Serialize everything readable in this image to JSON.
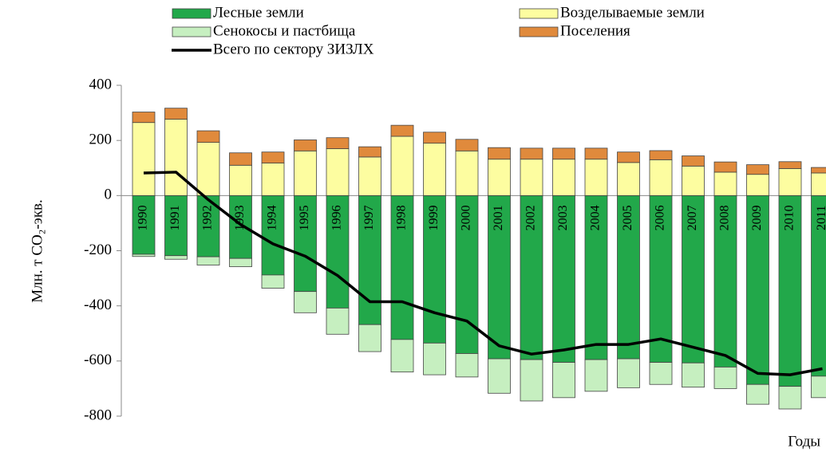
{
  "chart_data": {
    "type": "bar",
    "ylabel": "Млн. т CO₂-экв.",
    "xlabel": "Годы",
    "categories": [
      "1990",
      "1991",
      "1992",
      "1993",
      "1994",
      "1995",
      "1996",
      "1997",
      "1998",
      "1999",
      "2000",
      "2001",
      "2002",
      "2003",
      "2004",
      "2005",
      "2006",
      "2007",
      "2008",
      "2009",
      "2010",
      "2011"
    ],
    "series": [
      {
        "name": "Лесные земли",
        "color": "#22a84a",
        "values": [
          -213,
          -218,
          -222,
          -228,
          -288,
          -348,
          -408,
          -468,
          -522,
          -535,
          -573,
          -592,
          -595,
          -605,
          -595,
          -592,
          -605,
          -607,
          -622,
          -685,
          -692,
          -655
        ]
      },
      {
        "name": "Возделываемые земли",
        "color": "#fdfda0",
        "values": [
          265,
          277,
          193,
          110,
          118,
          162,
          170,
          140,
          215,
          190,
          162,
          132,
          132,
          132,
          132,
          120,
          130,
          107,
          85,
          77,
          98,
          82
        ]
      },
      {
        "name": "Сенокосы и пастбища",
        "color": "#c6efc0",
        "values": [
          -8,
          -13,
          -30,
          -30,
          -48,
          -77,
          -95,
          -98,
          -118,
          -115,
          -85,
          -125,
          -150,
          -128,
          -115,
          -105,
          -80,
          -88,
          -78,
          -72,
          -82,
          -78
        ]
      },
      {
        "name": "Поселения",
        "color": "#e08a3c",
        "values": [
          38,
          40,
          42,
          45,
          40,
          40,
          40,
          37,
          40,
          40,
          42,
          42,
          40,
          40,
          40,
          38,
          33,
          37,
          37,
          35,
          25,
          20
        ]
      },
      {
        "name": "Всего по сектору  ЗИЗЛХ",
        "type": "line",
        "color": "#000000",
        "values": [
          82,
          85,
          -15,
          -105,
          -175,
          -220,
          -290,
          -385,
          -385,
          -425,
          -455,
          -545,
          -575,
          -560,
          -540,
          -540,
          -520,
          -550,
          -580,
          -645,
          -650,
          -628
        ]
      }
    ],
    "ylim": [
      -800,
      400
    ],
    "yticks": [
      -800,
      -600,
      -400,
      -200,
      0,
      200,
      400
    ]
  }
}
